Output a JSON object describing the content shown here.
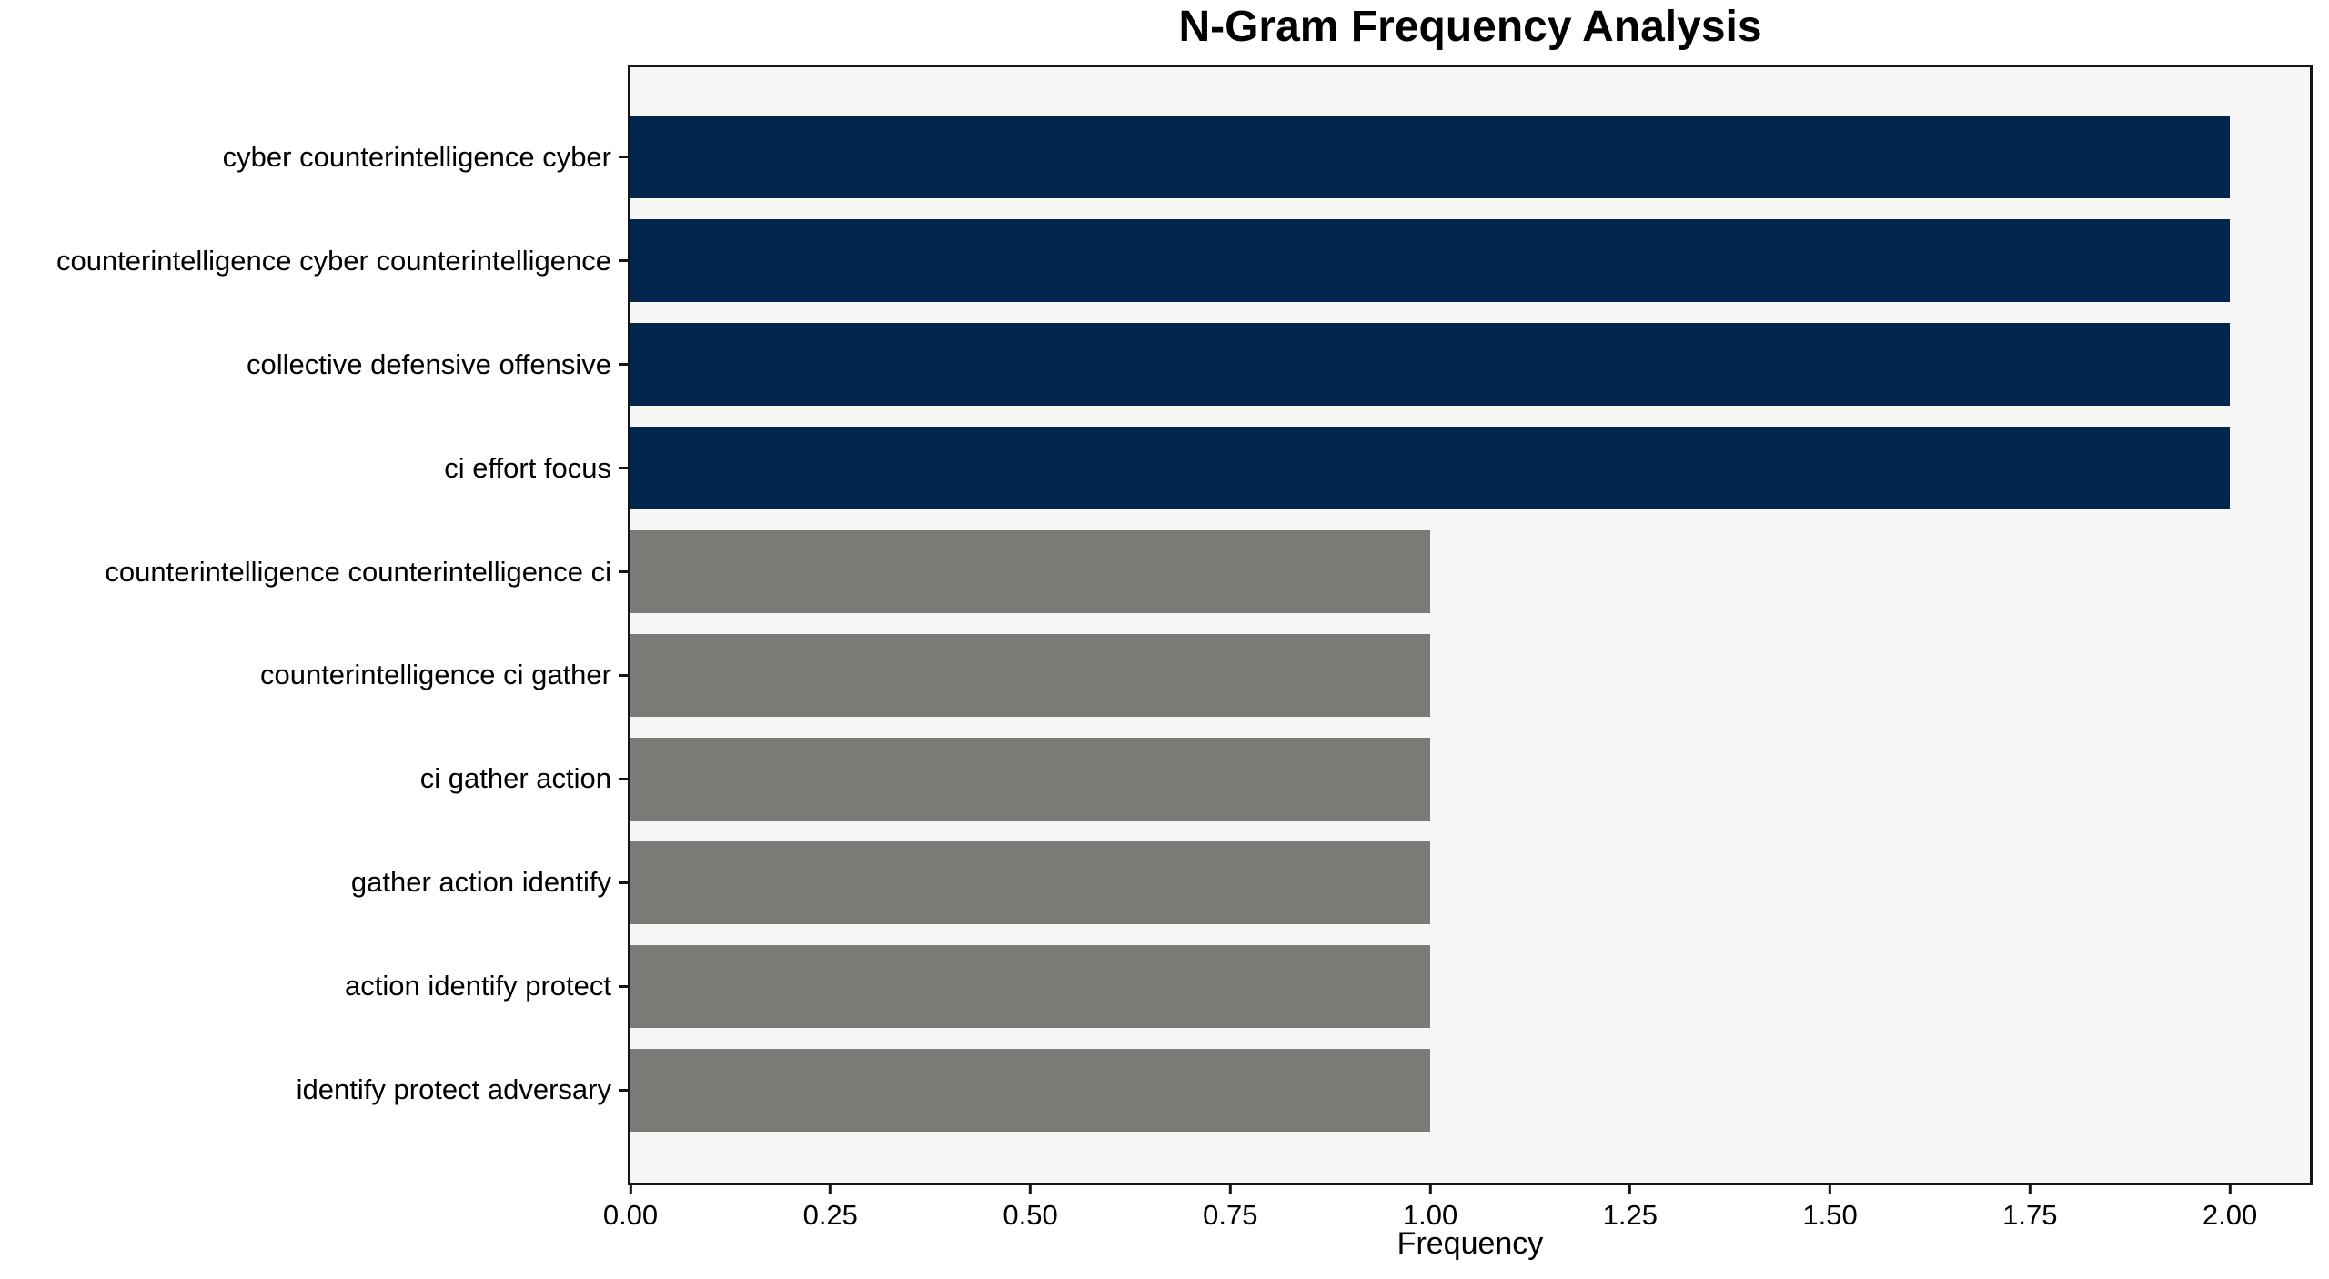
{
  "chart_data": {
    "type": "bar",
    "orientation": "horizontal",
    "title": "N-Gram Frequency Analysis",
    "xlabel": "Frequency",
    "ylabel": "",
    "categories": [
      "cyber counterintelligence cyber",
      "counterintelligence cyber counterintelligence",
      "collective defensive offensive",
      "ci effort focus",
      "counterintelligence counterintelligence ci",
      "counterintelligence ci gather",
      "ci gather action",
      "gather action identify",
      "action identify protect",
      "identify protect adversary"
    ],
    "values": [
      2,
      2,
      2,
      2,
      1,
      1,
      1,
      1,
      1,
      1
    ],
    "bar_colors": [
      "#02254d",
      "#02254d",
      "#02254d",
      "#02254d",
      "#7a7a76",
      "#7a7a76",
      "#7a7a76",
      "#7a7a76",
      "#7a7a76",
      "#7a7a76"
    ],
    "xlim": [
      0,
      2.1
    ],
    "xticks": [
      0,
      0.25,
      0.5,
      0.75,
      1.0,
      1.25,
      1.5,
      1.75,
      2.0
    ],
    "xtick_labels": [
      "0.00",
      "0.25",
      "0.50",
      "0.75",
      "1.00",
      "1.25",
      "1.50",
      "1.75",
      "2.00"
    ],
    "grid": "off",
    "legend": "none",
    "colors": {
      "navy_bar": "#02254d",
      "gray_bar": "#7a7a76",
      "plot_bg": "#f6f6f4",
      "spine": "#141414",
      "figure_bg": "#ffffff",
      "text": "#000000"
    }
  }
}
